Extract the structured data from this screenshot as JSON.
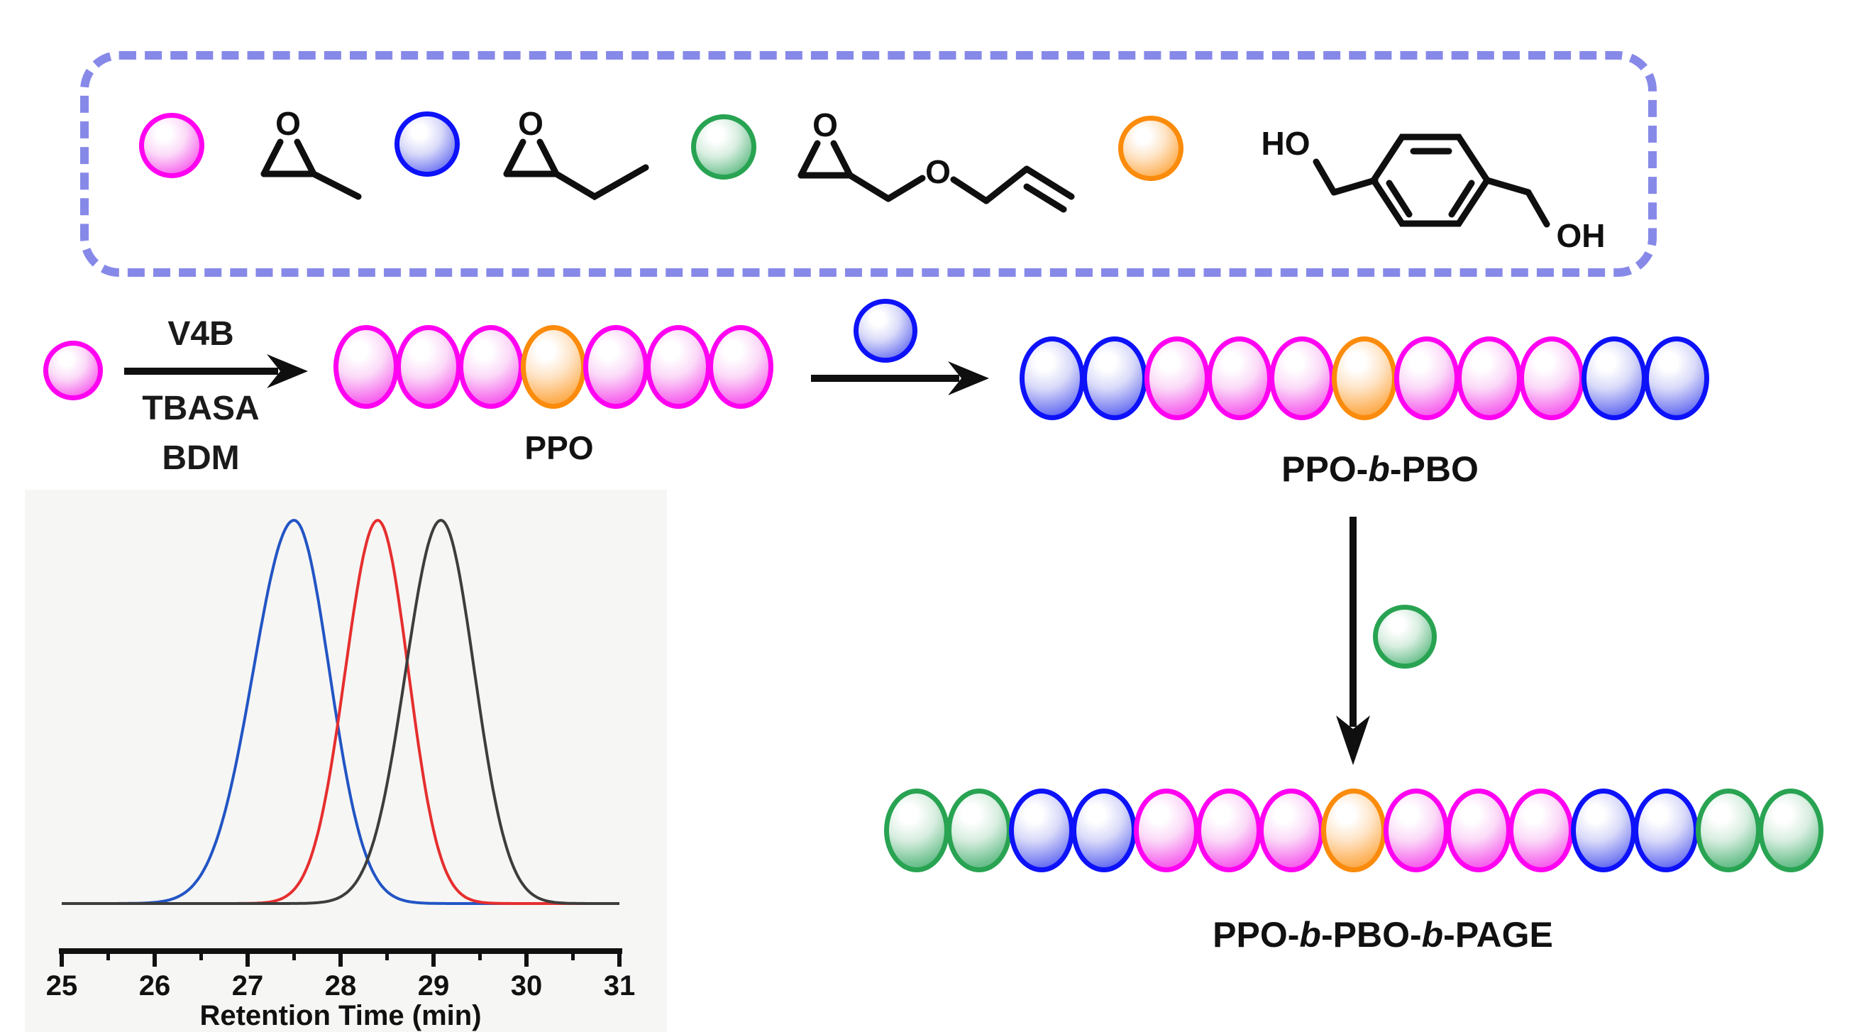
{
  "colors": {
    "magenta": "#ff00f0",
    "blue": "#0d12f8",
    "green": "#28a352",
    "orange": "#fb8b0b",
    "dash_border": "#8789e8",
    "trace_blue": "#2255c5",
    "trace_red": "#e62e2e",
    "trace_black": "#3d3d3d"
  },
  "legend_box": {
    "entries": [
      {
        "sphere": "magenta",
        "structure": "propylene-oxide-epoxide",
        "labels": {
          "epoxide_o": "O"
        }
      },
      {
        "sphere": "blue",
        "structure": "butylene-oxide-epoxide",
        "labels": {
          "epoxide_o": "O"
        }
      },
      {
        "sphere": "green",
        "structure": "allyl-glycidyl-ether-epoxide",
        "labels": {
          "epoxide_o": "O",
          "ether_o": "O"
        }
      },
      {
        "sphere": "orange",
        "structure": "benzene-dimethanol",
        "labels": {
          "left_hydroxyl": "HO",
          "right_hydroxyl": "OH"
        }
      }
    ]
  },
  "reaction": {
    "step1": {
      "reactant_sphere": "magenta",
      "reagent_above_arrow": "V4B",
      "reagents_below_arrow": [
        "TBASA",
        "BDM"
      ],
      "product_label": "PPO"
    },
    "step2": {
      "added_monomer_sphere": "blue",
      "product_label": "PPO-b-PBO"
    },
    "step3": {
      "added_monomer_sphere": "green",
      "product_label": "PPO-b-PBO-b-PAGE"
    }
  },
  "chains": {
    "ppo": [
      "magenta",
      "magenta",
      "magenta",
      "orange",
      "magenta",
      "magenta",
      "magenta"
    ],
    "ppo_b_pbo": [
      "blue",
      "blue",
      "magenta",
      "magenta",
      "magenta",
      "orange",
      "magenta",
      "magenta",
      "magenta",
      "blue",
      "blue"
    ],
    "ppo_b_pbo_b_page": [
      "green",
      "green",
      "blue",
      "blue",
      "magenta",
      "magenta",
      "magenta",
      "orange",
      "magenta",
      "magenta",
      "magenta",
      "blue",
      "blue",
      "green",
      "green"
    ]
  },
  "chart_data": {
    "type": "line",
    "title": "",
    "xlabel": "Retention Time (min)",
    "ylabel": "",
    "xlim": [
      25,
      31
    ],
    "x_ticks": [
      25,
      26,
      27,
      28,
      29,
      30,
      31
    ],
    "minor_tick_step": 0.5,
    "grid": false,
    "legend_position": "none",
    "baseline": 0,
    "series": [
      {
        "name": "blue-trace",
        "color": "#2255c5",
        "peak_min": 27.5,
        "sigma_left": 0.44,
        "sigma_right": 0.38,
        "height": 1.0
      },
      {
        "name": "red-trace",
        "color": "#e62e2e",
        "peak_min": 28.4,
        "sigma_left": 0.35,
        "sigma_right": 0.33,
        "height": 1.0
      },
      {
        "name": "black-trace",
        "color": "#3d3d3d",
        "peak_min": 29.08,
        "sigma_left": 0.38,
        "sigma_right": 0.36,
        "height": 1.0
      }
    ]
  }
}
